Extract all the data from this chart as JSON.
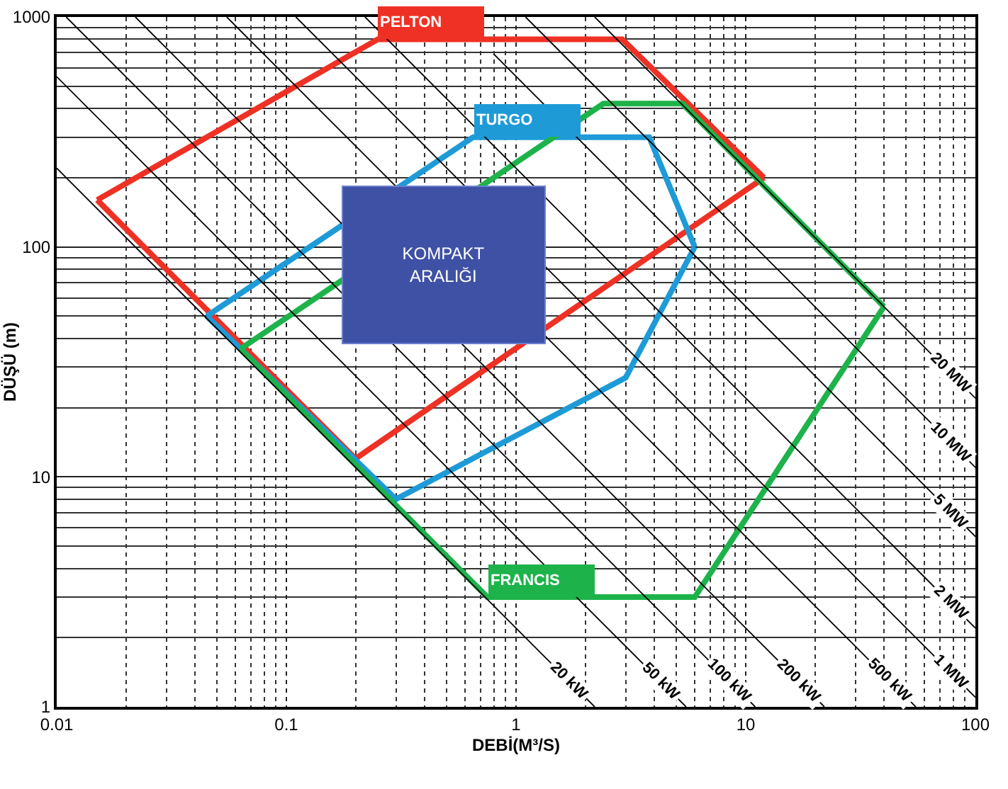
{
  "chart_data": {
    "type": "line",
    "xlabel": "DEBİ(M³/S)",
    "ylabel": "DÜŞÜ (m)",
    "log": "xy",
    "xlim": [
      0.01,
      100
    ],
    "ylim": [
      1,
      1000
    ],
    "xticks": [
      0.01,
      0.1,
      1,
      10,
      100
    ],
    "yticks": [
      1,
      10,
      100,
      1000
    ],
    "grid": true,
    "legend": false,
    "line_style": "solid",
    "annotations": [
      "KOMPAKT\nARALIĞI"
    ],
    "series": [
      {
        "name": "PELTON",
        "color": "#ee3124",
        "x": [
          0.015,
          0.25,
          2.9,
          12
        ],
        "values": [
          160,
          800,
          800,
          200
        ]
      },
      {
        "color": "#ee3124",
        "x": [
          0.015,
          0.2,
          12
        ],
        "values": [
          160,
          12,
          200
        ]
      },
      {
        "name": "TURGO",
        "color": "#1e9bd7",
        "x": [
          0.045,
          0.65,
          3.8,
          6
        ],
        "values": [
          50,
          300,
          300,
          100
        ]
      },
      {
        "color": "#1e9bd7",
        "x": [
          0.045,
          0.3,
          3,
          6
        ],
        "values": [
          50,
          8,
          27,
          100
        ]
      },
      {
        "name": "FRANCIS",
        "color": "#1db34a",
        "x": [
          0.063,
          0.75,
          6,
          40
        ],
        "values": [
          36,
          3,
          3,
          55
        ]
      },
      {
        "color": "#1db34a",
        "x": [
          0.063,
          2.4,
          5.3,
          40
        ],
        "values": [
          36,
          420,
          420,
          55
        ]
      },
      {
        "name": "20 kW",
        "color": "#000000",
        "x": [
          0.01,
          2.2
        ],
        "values": [
          220,
          1
        ]
      },
      {
        "name": "50 kW",
        "color": "#000000",
        "x": [
          0.01,
          5.5
        ],
        "values": [
          550,
          1
        ]
      },
      {
        "name": "100 kW",
        "color": "#000000",
        "x": [
          0.011,
          11
        ],
        "values": [
          1000,
          1
        ]
      },
      {
        "name": "200 kW",
        "color": "#000000",
        "x": [
          0.022,
          22
        ],
        "values": [
          1000,
          1
        ]
      },
      {
        "name": "500 kW",
        "color": "#000000",
        "x": [
          0.055,
          55
        ],
        "values": [
          1000,
          1
        ]
      },
      {
        "name": "1 MW",
        "color": "#000000",
        "x": [
          0.11,
          100
        ],
        "values": [
          1000,
          1.1
        ]
      },
      {
        "name": "2 MW",
        "color": "#000000",
        "x": [
          0.22,
          100
        ],
        "values": [
          1000,
          2.2
        ]
      },
      {
        "name": "5 MW",
        "color": "#000000",
        "x": [
          0.8,
          100
        ],
        "values": [
          690,
          5.5
        ]
      },
      {
        "name": "10 MW",
        "color": "#000000",
        "x": [
          1.1,
          100
        ],
        "values": [
          1000,
          11
        ]
      },
      {
        "name": "20 MW",
        "color": "#000000",
        "x": [
          2.2,
          100
        ],
        "values": [
          1000,
          22
        ]
      }
    ]
  }
}
